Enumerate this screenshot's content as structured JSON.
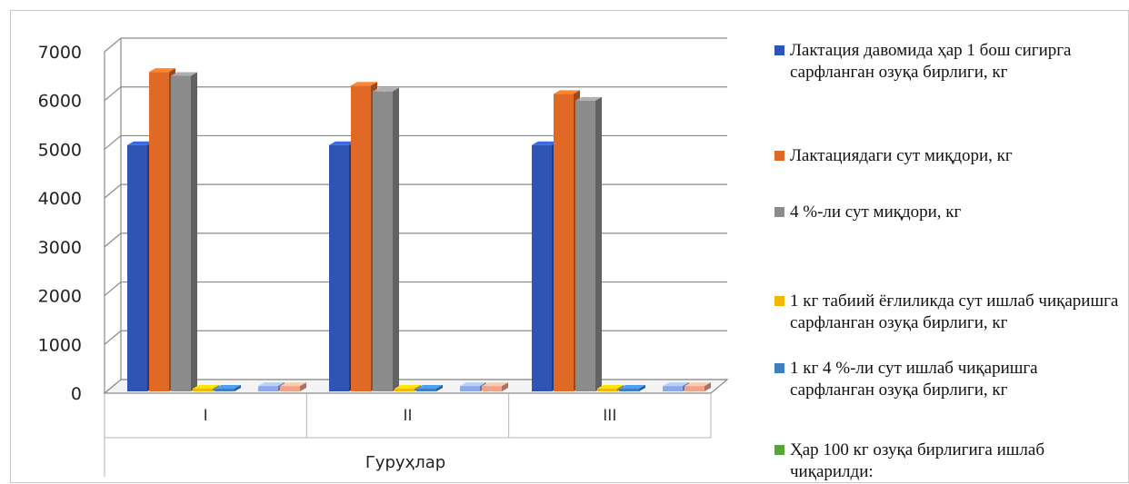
{
  "chart_data": {
    "type": "bar",
    "style": "3d-clustered-column",
    "categories": [
      "I",
      "II",
      "III"
    ],
    "xlabel": "Гуруҳлар",
    "ylabel": "",
    "ylim": [
      0,
      7000
    ],
    "yticks": [
      "0",
      "1000",
      "2000",
      "3000",
      "4000",
      "5000",
      "6000",
      "7000"
    ],
    "grid": true,
    "legend_position": "right",
    "series": [
      {
        "name": "Лактация давомида ҳар 1 бош сигирга сарфланган озуқа бирлиги, кг",
        "color": "#2e55b5",
        "values": [
          5050,
          5050,
          5050
        ]
      },
      {
        "name": "Лактациядаги сут миқдори, кг",
        "color": "#e06a25",
        "values": [
          6550,
          6270,
          6100
        ]
      },
      {
        "name": "4 %-ли сут миқдори, кг",
        "color": "#8c8c8c",
        "values": [
          6470,
          6150,
          5960
        ]
      },
      {
        "name": "1 кг табиий ёғлиликда сут ишлаб чиқаришга сарфланган озуқа бирлиги, кг",
        "color": "#f2b800",
        "values": [
          0.8,
          0.8,
          0.8
        ]
      },
      {
        "name": "1 кг 4 %-ли сут ишлаб чиқаришга сарфланган озуқа бирлиги, кг",
        "color": "#3e7fc4",
        "values": [
          0.8,
          0.8,
          0.8
        ]
      },
      {
        "name": "Ҳар 100 кг озуқа бирлигига ишлаб чиқарилди:",
        "color": "#5aa33b",
        "values": [
          0,
          0,
          0
        ]
      },
      {
        "name": "",
        "color": "#8fa8e8",
        "values": [
          110,
          110,
          110
        ]
      },
      {
        "name": "",
        "color": "#f0a48a",
        "values": [
          110,
          110,
          110
        ]
      }
    ]
  }
}
